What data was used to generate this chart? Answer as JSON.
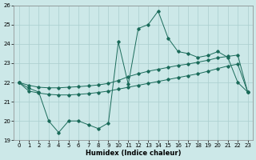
{
  "xlabel": "Humidex (Indice chaleur)",
  "x": [
    0,
    1,
    2,
    3,
    4,
    5,
    6,
    7,
    8,
    9,
    10,
    11,
    12,
    13,
    14,
    15,
    16,
    17,
    18,
    19,
    20,
    21,
    22,
    23
  ],
  "y_main": [
    22.0,
    21.7,
    21.5,
    20.0,
    19.4,
    20.0,
    20.0,
    19.8,
    19.6,
    19.9,
    24.1,
    21.9,
    24.8,
    25.0,
    25.7,
    24.3,
    23.6,
    23.5,
    23.3,
    23.4,
    23.6,
    23.3,
    22.0,
    21.5
  ],
  "y_upper": [
    22.0,
    21.85,
    21.75,
    21.72,
    21.72,
    21.75,
    21.78,
    21.82,
    21.87,
    21.95,
    22.1,
    22.3,
    22.45,
    22.58,
    22.68,
    22.78,
    22.88,
    22.95,
    23.05,
    23.15,
    23.28,
    23.35,
    23.42,
    21.5
  ],
  "y_lower": [
    22.0,
    21.55,
    21.45,
    21.38,
    21.35,
    21.35,
    21.38,
    21.42,
    21.48,
    21.55,
    21.65,
    21.75,
    21.85,
    21.95,
    22.05,
    22.15,
    22.25,
    22.35,
    22.45,
    22.58,
    22.72,
    22.85,
    22.95,
    21.5
  ],
  "line_color": "#1a6b5a",
  "bg_color": "#cce8e8",
  "grid_color": "#aacece",
  "ylim": [
    19,
    26
  ],
  "xlim": [
    -0.5,
    23.5
  ],
  "yticks": [
    19,
    20,
    21,
    22,
    23,
    24,
    25,
    26
  ],
  "xticks": [
    0,
    1,
    2,
    3,
    4,
    5,
    6,
    7,
    8,
    9,
    10,
    11,
    12,
    13,
    14,
    15,
    16,
    17,
    18,
    19,
    20,
    21,
    22,
    23
  ]
}
